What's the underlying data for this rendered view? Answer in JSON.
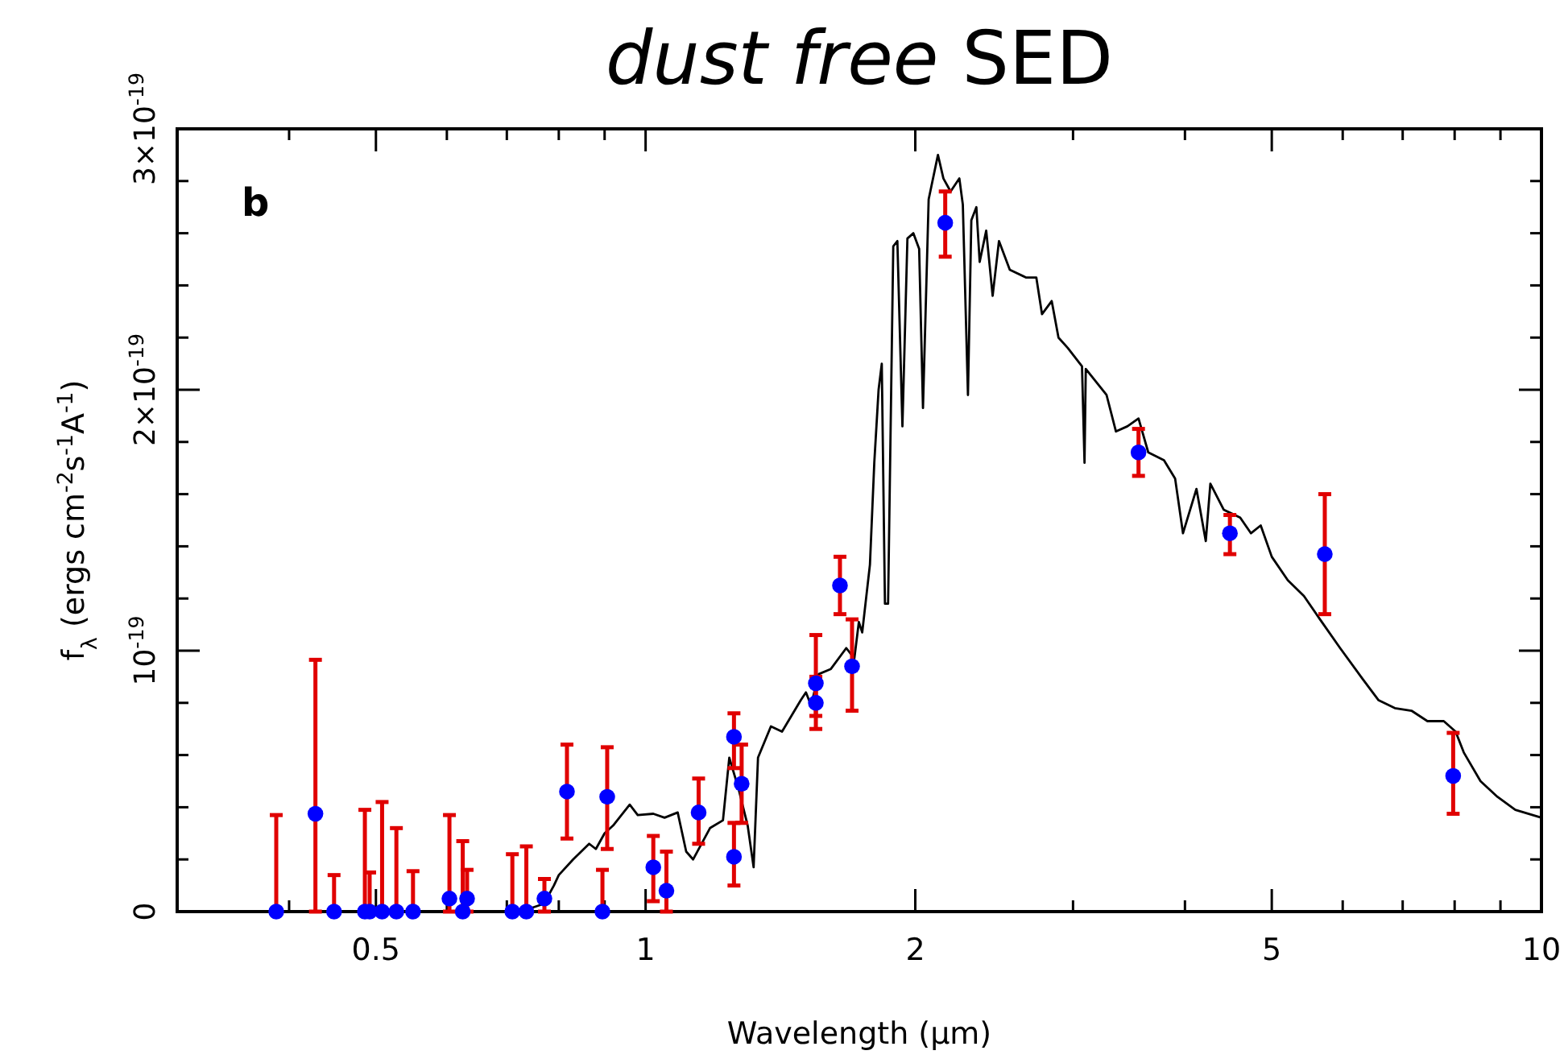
{
  "chart_data": {
    "type": "line",
    "title": "dust free SED",
    "xlabel": "Wavelength (μm)",
    "ylabel": "f$_{λ}$ (ergs cm$^{-2}$s$^{-1}$A$^{-1}$)",
    "annotations": [
      "b"
    ],
    "log": "x",
    "grid": false,
    "xlim": [
      0.3,
      10
    ],
    "xticks": [
      {
        "value": 0.3,
        "label": null
      },
      {
        "value": 0.4,
        "label": null
      },
      0.5,
      {
        "value": 0.6,
        "label": null
      },
      {
        "value": 0.7,
        "label": null
      },
      {
        "value": 0.8,
        "label": null
      },
      {
        "value": 0.9,
        "label": null
      },
      1,
      2,
      {
        "value": 3,
        "label": null
      },
      {
        "value": 4,
        "label": null
      },
      5,
      {
        "value": 6,
        "label": null
      },
      {
        "value": 7,
        "label": null
      },
      {
        "value": 8,
        "label": null
      },
      {
        "value": 9,
        "label": null
      },
      10
    ],
    "ylim": [
      0,
      3e-19
    ],
    "yticks": [
      0,
      {
        "value": 2e-20,
        "label": null
      },
      {
        "value": 4e-20,
        "label": null
      },
      {
        "value": 6e-20,
        "label": null
      },
      {
        "value": 8e-20,
        "label": null
      },
      {
        "value": 1e-19,
        "label": "10$^{-19}$"
      },
      {
        "value": 1.2e-19,
        "label": null
      },
      {
        "value": 1.4e-19,
        "label": null
      },
      {
        "value": 1.6e-19,
        "label": null
      },
      {
        "value": 1.8e-19,
        "label": null
      },
      {
        "value": 2e-19,
        "label": "2×10$^{-19}$"
      },
      {
        "value": 2.2e-19,
        "label": null
      },
      {
        "value": 2.4e-19,
        "label": null
      },
      {
        "value": 2.6e-19,
        "label": null
      },
      {
        "value": 2.8e-19,
        "label": null
      },
      {
        "value": 3e-19,
        "label": "3×10$^{-19}$"
      }
    ],
    "series": [
      {
        "type": "line",
        "color": "#000000",
        "marker": "none",
        "line_style": "solid",
        "x": [
          0.65,
          0.7,
          0.74,
          0.77,
          0.79,
          0.8,
          0.83,
          0.865,
          0.88,
          0.9,
          0.92,
          0.96,
          0.98,
          1.02,
          1.05,
          1.086,
          1.11,
          1.13,
          1.18,
          1.22,
          1.24,
          1.27,
          1.3,
          1.32,
          1.335,
          1.38,
          1.42,
          1.49,
          1.51,
          1.53,
          1.56,
          1.61,
          1.675,
          1.71,
          1.73,
          1.745,
          1.78,
          1.8,
          1.82,
          1.835,
          1.85,
          1.865,
          1.89,
          1.91,
          1.935,
          1.96,
          1.99,
          2.02,
          2.04,
          2.07,
          2.12,
          2.15,
          2.19,
          2.24,
          2.26,
          2.29,
          2.31,
          2.34,
          2.36,
          2.4,
          2.44,
          2.48,
          2.55,
          2.66,
          2.73,
          2.77,
          2.84,
          2.89,
          2.96,
          3.07,
          3.09,
          3.1,
          3.27,
          3.35,
          3.45,
          3.55,
          3.64,
          3.79,
          3.9,
          3.98,
          4.12,
          4.22,
          4.27,
          4.42,
          4.61,
          4.74,
          4.86,
          5.0,
          5.21,
          5.43,
          5.66,
          5.96,
          6.32,
          6.58,
          6.86,
          7.16,
          7.46,
          7.78,
          8.02,
          8.19,
          8.55,
          8.93,
          9.35,
          10
        ],
        "values": [
          0,
          0,
          1e-21,
          3e-21,
          1e-20,
          1.4e-20,
          2e-20,
          2.6e-20,
          2.4e-20,
          3e-20,
          3.3e-20,
          4.1e-20,
          3.7e-20,
          3.75e-20,
          3.6e-20,
          3.8e-20,
          2.3e-20,
          2e-20,
          3.2e-20,
          3.5e-20,
          5.9e-20,
          4.7e-20,
          3.3e-20,
          1.7e-20,
          5.9e-20,
          7.1e-20,
          6.9e-20,
          8.1e-20,
          8.4e-20,
          7.9e-20,
          9.1e-20,
          9.3e-20,
          1.01e-19,
          9.7e-20,
          1.11e-19,
          1.07e-19,
          1.33e-19,
          1.72e-19,
          2e-19,
          2.1e-19,
          1.18e-19,
          1.18e-19,
          2.55e-19,
          2.57e-19,
          1.86e-19,
          2.58e-19,
          2.6e-19,
          2.54e-19,
          1.93e-19,
          2.73e-19,
          2.9e-19,
          2.81e-19,
          2.76e-19,
          2.81e-19,
          2.71e-19,
          1.98e-19,
          2.65e-19,
          2.7e-19,
          2.49e-19,
          2.61e-19,
          2.36e-19,
          2.57e-19,
          2.46e-19,
          2.43e-19,
          2.43e-19,
          2.29e-19,
          2.34e-19,
          2.2e-19,
          2.16e-19,
          2.09e-19,
          1.72e-19,
          2.08e-19,
          1.98e-19,
          1.84e-19,
          1.86e-19,
          1.89e-19,
          1.76e-19,
          1.73e-19,
          1.66e-19,
          1.45e-19,
          1.62e-19,
          1.42e-19,
          1.64e-19,
          1.54e-19,
          1.51e-19,
          1.45e-19,
          1.48e-19,
          1.36e-19,
          1.27e-19,
          1.21e-19,
          1.12e-19,
          1.01e-19,
          8.9e-20,
          8.1e-20,
          7.8e-20,
          7.7e-20,
          7.3e-20,
          7.3e-20,
          6.9e-20,
          6.1e-20,
          5e-20,
          4.4e-20,
          3.9e-20,
          3.6e-20
        ]
      },
      {
        "type": "scatter",
        "color": "#0000ff",
        "marker": "circle",
        "x": [
          0.387,
          0.428,
          0.449,
          0.486,
          0.492,
          0.508,
          0.527,
          0.55,
          0.604,
          0.625,
          0.632,
          0.71,
          0.736,
          0.771,
          0.817,
          0.895,
          0.906,
          1.02,
          1.055,
          1.146,
          1.255,
          1.255,
          1.28,
          1.549,
          1.549,
          1.648,
          1.7,
          2.16,
          3.55,
          4.49,
          5.73,
          7.97
        ],
        "values": [
          0,
          3.75e-20,
          0,
          0,
          0,
          0,
          0,
          0,
          5e-21,
          0,
          5e-21,
          0,
          0,
          5e-21,
          4.6e-20,
          0,
          4.4e-20,
          1.7e-20,
          8e-21,
          3.8e-20,
          6.7e-20,
          2.1e-20,
          4.9e-20,
          8.75e-20,
          8e-20,
          1.25e-19,
          9.4e-20,
          2.64e-19,
          1.76e-19,
          1.45e-19,
          1.37e-19,
          5.2e-20
        ],
        "errors": [
          [
            0,
            3.7e-20
          ],
          [
            0,
            9.65e-20
          ],
          [
            0,
            1.4e-20
          ],
          [
            0,
            3.9e-20
          ],
          [
            0,
            1.5e-20
          ],
          [
            0,
            4.2e-20
          ],
          [
            0,
            3.2e-20
          ],
          [
            0,
            1.55e-20
          ],
          [
            0,
            3.7e-20
          ],
          [
            0,
            2.7e-20
          ],
          [
            0,
            1.6e-20
          ],
          [
            0,
            2.2e-20
          ],
          [
            0,
            2.5e-20
          ],
          [
            0,
            1.25e-20
          ],
          [
            2.8e-20,
            6.4e-20
          ],
          [
            0,
            1.6e-20
          ],
          [
            2.4e-20,
            6.3e-20
          ],
          [
            4e-21,
            2.9e-20
          ],
          [
            0,
            2.3e-20
          ],
          [
            2.6e-20,
            5.1e-20
          ],
          [
            5.5e-20,
            7.6e-20
          ],
          [
            1e-20,
            3.4e-20
          ],
          [
            3.4e-20,
            6.4e-20
          ],
          [
            7.5e-20,
            1.06e-19
          ],
          [
            7e-20,
            9e-20
          ],
          [
            1.14e-19,
            1.36e-19
          ],
          [
            7.7e-20,
            1.12e-19
          ],
          [
            2.51e-19,
            2.76e-19
          ],
          [
            1.67e-19,
            1.85e-19
          ],
          [
            1.37e-19,
            1.52e-19
          ],
          [
            1.14e-19,
            1.6e-19
          ],
          [
            3.75e-20,
            6.85e-20
          ]
        ]
      }
    ]
  }
}
